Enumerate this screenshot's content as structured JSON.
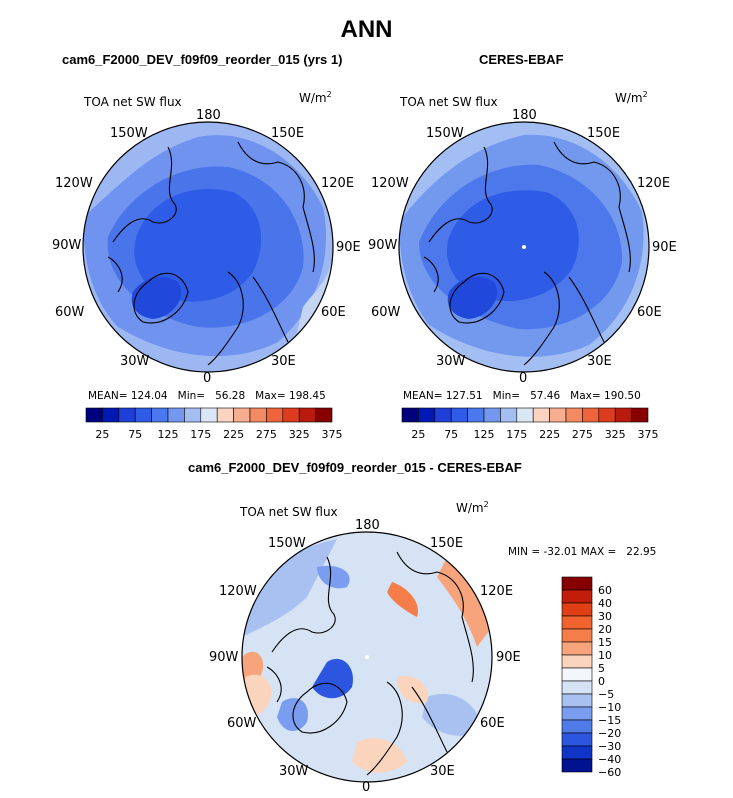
{
  "title": "ANN",
  "panels": [
    {
      "subtitle": "cam6_F2000_DEV_f09f09_reorder_015 (yrs 1)",
      "variable": "TOA net SW flux",
      "units": "W/m",
      "units_exp": "2",
      "stats": {
        "mean_label": "MEAN=",
        "mean": "124.04",
        "min_label": "Min=",
        "min": "56.28",
        "max_label": "Max=",
        "max": "198.45"
      }
    },
    {
      "subtitle": "CERES-EBAF",
      "variable": "TOA net SW flux",
      "units": "W/m",
      "units_exp": "2",
      "stats": {
        "mean_label": "MEAN=",
        "mean": "127.51",
        "min_label": "Min=",
        "min": "57.46",
        "max_label": "Max=",
        "max": "190.50"
      }
    }
  ],
  "diff_panel": {
    "subtitle": "cam6_F2000_DEV_f09f09_reorder_015 - CERES-EBAF",
    "variable": "TOA net SW flux",
    "units": "W/m",
    "units_exp": "2",
    "stats": {
      "min_label": "MIN =",
      "min": "-32.01",
      "max_label": "MAX =",
      "max": "22.95"
    }
  },
  "lon_labels": {
    "top": "180",
    "bottom": "0",
    "left": [
      "150W",
      "120W",
      "90W",
      "60W",
      "30W"
    ],
    "right": [
      "150E",
      "120E",
      "90E",
      "60E",
      "30E"
    ]
  },
  "colorbar_abs": {
    "colors": [
      "#00007f",
      "#0018b4",
      "#1f3fd8",
      "#2f5ce6",
      "#4b78ee",
      "#7498f0",
      "#a3bff2",
      "#dbe7f5",
      "#fbd3c0",
      "#f7ad8f",
      "#f48a62",
      "#f0643b",
      "#dd3d1e",
      "#b81b0d",
      "#870000"
    ],
    "ticks": [
      "25",
      "75",
      "125",
      "175",
      "225",
      "275",
      "325",
      "375"
    ]
  },
  "colorbar_diff": {
    "colors": [
      "#870000",
      "#c11d0a",
      "#e03f15",
      "#f0622e",
      "#f47d4a",
      "#f7a47c",
      "#fad4bd",
      "#f3f6fb",
      "#d6e3f5",
      "#a8c1f0",
      "#7b9def",
      "#4f7ae8",
      "#2c56e0",
      "#1034c8",
      "#00128f"
    ],
    "labels": [
      "60",
      "40",
      "30",
      "20",
      "15",
      "10",
      "5",
      "0",
      "−5",
      "−10",
      "−15",
      "−20",
      "−30",
      "−40",
      "−60"
    ]
  },
  "chart_data": [
    {
      "type": "heatmap",
      "projection": "north-polar-stereographic",
      "title": "cam6_F2000_DEV_f09f09_reorder_015 (yrs 1)",
      "variable": "TOA net SW flux",
      "units": "W/m2",
      "mean": 124.04,
      "min": 56.28,
      "max": 198.45,
      "colorbar_range": [
        0,
        400
      ],
      "colorbar_ticks": [
        25,
        75,
        125,
        175,
        225,
        275,
        325,
        375
      ]
    },
    {
      "type": "heatmap",
      "projection": "north-polar-stereographic",
      "title": "CERES-EBAF",
      "variable": "TOA net SW flux",
      "units": "W/m2",
      "mean": 127.51,
      "min": 57.46,
      "max": 190.5,
      "colorbar_range": [
        0,
        400
      ],
      "colorbar_ticks": [
        25,
        75,
        125,
        175,
        225,
        275,
        325,
        375
      ]
    },
    {
      "type": "heatmap",
      "projection": "north-polar-stereographic",
      "title": "cam6_F2000_DEV_f09f09_reorder_015 - CERES-EBAF",
      "variable": "TOA net SW flux",
      "units": "W/m2",
      "min": -32.01,
      "max": 22.95,
      "colorbar_levels": [
        60,
        40,
        30,
        20,
        15,
        10,
        5,
        0,
        -5,
        -10,
        -15,
        -20,
        -30,
        -40,
        -60
      ]
    }
  ]
}
